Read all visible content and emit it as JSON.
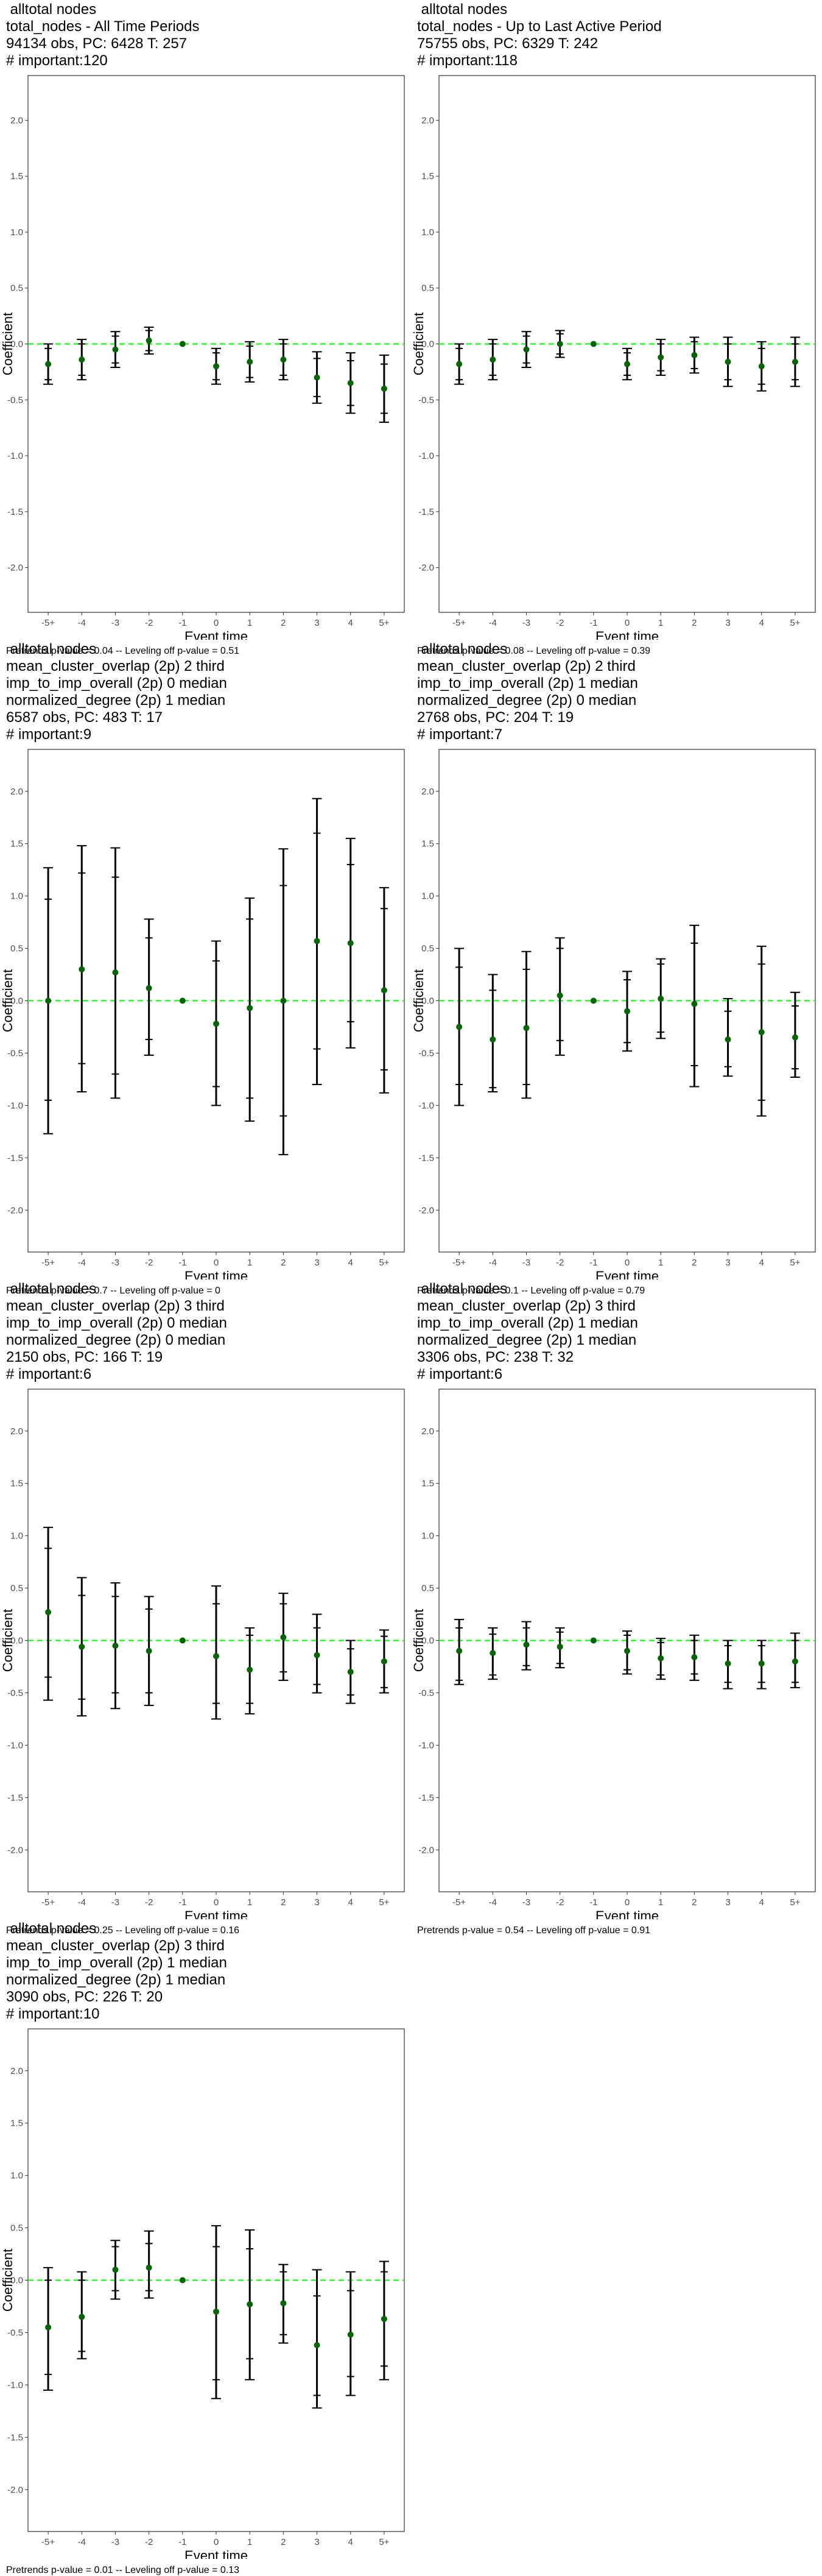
{
  "chart_data": [
    {
      "type": "scatter",
      "title_lines": [
        " alltotal nodes",
        "total_nodes - All Time Periods",
        "94134 obs, PC: 6428 T: 257",
        "# important:120"
      ],
      "xlabel": "Event time",
      "ylabel": "Coefficient",
      "categories": [
        "-5+",
        "-4",
        "-3",
        "-2",
        "-1",
        "0",
        "1",
        "2",
        "3",
        "4",
        "5+"
      ],
      "ylim": [
        -2.4,
        2.4
      ],
      "yticks": [
        -2.0,
        -1.5,
        -1.0,
        -0.5,
        0.0,
        0.5,
        1.0,
        1.5,
        2.0
      ],
      "coef": [
        -0.18,
        -0.14,
        -0.05,
        0.03,
        0.0,
        -0.2,
        -0.16,
        -0.14,
        -0.3,
        -0.35,
        -0.4
      ],
      "ci_inner": [
        [
          -0.32,
          -0.04
        ],
        [
          -0.28,
          0.0
        ],
        [
          -0.17,
          0.07
        ],
        [
          -0.06,
          0.12
        ],
        [
          0,
          0
        ],
        [
          -0.32,
          -0.08
        ],
        [
          -0.3,
          -0.02
        ],
        [
          -0.28,
          0.0
        ],
        [
          -0.47,
          -0.13
        ],
        [
          -0.55,
          -0.15
        ],
        [
          -0.62,
          -0.18
        ]
      ],
      "ci_outer": [
        [
          -0.36,
          0.0
        ],
        [
          -0.32,
          0.04
        ],
        [
          -0.21,
          0.11
        ],
        [
          -0.09,
          0.15
        ],
        [
          0,
          0
        ],
        [
          -0.36,
          -0.04
        ],
        [
          -0.34,
          0.02
        ],
        [
          -0.32,
          0.04
        ],
        [
          -0.53,
          -0.07
        ],
        [
          -0.62,
          -0.08
        ],
        [
          -0.7,
          -0.1
        ]
      ],
      "footer": "Pretrends p-value = 0.04 -- Leveling off p-value = 0.51",
      "colors": {
        "point": "#006400",
        "zero_line": "#00ff00",
        "bar": "#000000"
      }
    },
    {
      "type": "scatter",
      "title_lines": [
        " alltotal nodes",
        "total_nodes - Up to Last Active Period",
        "75755 obs, PC: 6329 T: 242",
        "# important:118"
      ],
      "xlabel": "Event time",
      "ylabel": "Coefficient",
      "categories": [
        "-5+",
        "-4",
        "-3",
        "-2",
        "-1",
        "0",
        "1",
        "2",
        "3",
        "4",
        "5+"
      ],
      "ylim": [
        -2.4,
        2.4
      ],
      "yticks": [
        -2.0,
        -1.5,
        -1.0,
        -0.5,
        0.0,
        0.5,
        1.0,
        1.5,
        2.0
      ],
      "coef": [
        -0.18,
        -0.14,
        -0.05,
        0.0,
        0.0,
        -0.18,
        -0.12,
        -0.1,
        -0.16,
        -0.2,
        -0.16
      ],
      "ci_inner": [
        [
          -0.32,
          -0.04
        ],
        [
          -0.28,
          0.0
        ],
        [
          -0.17,
          0.07
        ],
        [
          -0.09,
          0.09
        ],
        [
          0,
          0
        ],
        [
          -0.28,
          -0.08
        ],
        [
          -0.24,
          0.0
        ],
        [
          -0.22,
          0.02
        ],
        [
          -0.32,
          0.0
        ],
        [
          -0.36,
          -0.04
        ],
        [
          -0.32,
          0.0
        ]
      ],
      "ci_outer": [
        [
          -0.36,
          0.0
        ],
        [
          -0.32,
          0.04
        ],
        [
          -0.21,
          0.11
        ],
        [
          -0.12,
          0.12
        ],
        [
          0,
          0
        ],
        [
          -0.32,
          -0.04
        ],
        [
          -0.28,
          0.04
        ],
        [
          -0.26,
          0.06
        ],
        [
          -0.38,
          0.06
        ],
        [
          -0.42,
          0.02
        ],
        [
          -0.38,
          0.06
        ]
      ],
      "footer": "Pretrends p-value = 0.08 -- Leveling off p-value = 0.39",
      "colors": {
        "point": "#006400",
        "zero_line": "#00ff00",
        "bar": "#000000"
      }
    },
    {
      "type": "scatter",
      "title_lines": [
        " alltotal nodes",
        "mean_cluster_overlap (2p) 2 third",
        "imp_to_imp_overall (2p) 0 median",
        "normalized_degree (2p) 1 median",
        "6587 obs, PC: 483 T: 17",
        "# important:9"
      ],
      "xlabel": "Event time",
      "ylabel": "Coefficient",
      "categories": [
        "-5+",
        "-4",
        "-3",
        "-2",
        "-1",
        "0",
        "1",
        "2",
        "3",
        "4",
        "5+"
      ],
      "ylim": [
        -2.4,
        2.4
      ],
      "yticks": [
        -2.0,
        -1.5,
        -1.0,
        -0.5,
        0.0,
        0.5,
        1.0,
        1.5,
        2.0
      ],
      "coef": [
        0.0,
        0.3,
        0.27,
        0.12,
        0.0,
        -0.22,
        -0.07,
        0.0,
        0.57,
        0.55,
        0.1
      ],
      "ci_inner": [
        [
          -0.95,
          0.97
        ],
        [
          -0.6,
          1.22
        ],
        [
          -0.7,
          1.18
        ],
        [
          -0.37,
          0.6
        ],
        [
          0,
          0
        ],
        [
          -0.82,
          0.38
        ],
        [
          -0.93,
          0.78
        ],
        [
          -1.1,
          1.1
        ],
        [
          -0.46,
          1.6
        ],
        [
          -0.2,
          1.3
        ],
        [
          -0.66,
          0.88
        ]
      ],
      "ci_outer": [
        [
          -1.27,
          1.27
        ],
        [
          -0.87,
          1.48
        ],
        [
          -0.93,
          1.46
        ],
        [
          -0.52,
          0.78
        ],
        [
          0,
          0
        ],
        [
          -1.0,
          0.57
        ],
        [
          -1.15,
          0.98
        ],
        [
          -1.47,
          1.45
        ],
        [
          -0.8,
          1.93
        ],
        [
          -0.45,
          1.55
        ],
        [
          -0.88,
          1.08
        ]
      ],
      "footer": "Pretrends p-value = 0.7 -- Leveling off p-value = 0",
      "colors": {
        "point": "#006400",
        "zero_line": "#00ff00",
        "bar": "#000000"
      }
    },
    {
      "type": "scatter",
      "title_lines": [
        " alltotal nodes",
        "mean_cluster_overlap (2p) 2 third",
        "imp_to_imp_overall (2p) 1 median",
        "normalized_degree (2p) 0 median",
        "2768 obs, PC: 204 T: 19",
        "# important:7"
      ],
      "xlabel": "Event time",
      "ylabel": "Coefficient",
      "categories": [
        "-5+",
        "-4",
        "-3",
        "-2",
        "-1",
        "0",
        "1",
        "2",
        "3",
        "4",
        "5+"
      ],
      "ylim": [
        -2.4,
        2.4
      ],
      "yticks": [
        -2.0,
        -1.5,
        -1.0,
        -0.5,
        0.0,
        0.5,
        1.0,
        1.5,
        2.0
      ],
      "coef": [
        -0.25,
        -0.37,
        -0.26,
        0.05,
        0.0,
        -0.1,
        0.02,
        -0.03,
        -0.37,
        -0.3,
        -0.35
      ],
      "ci_inner": [
        [
          -0.8,
          0.32
        ],
        [
          -0.83,
          0.1
        ],
        [
          -0.8,
          0.3
        ],
        [
          -0.38,
          0.5
        ],
        [
          0,
          0
        ],
        [
          -0.4,
          0.2
        ],
        [
          -0.3,
          0.35
        ],
        [
          -0.62,
          0.55
        ],
        [
          -0.63,
          -0.1
        ],
        [
          -0.95,
          0.35
        ],
        [
          -0.65,
          -0.05
        ]
      ],
      "ci_outer": [
        [
          -1.0,
          0.5
        ],
        [
          -0.87,
          0.25
        ],
        [
          -0.93,
          0.47
        ],
        [
          -0.52,
          0.6
        ],
        [
          0,
          0
        ],
        [
          -0.48,
          0.28
        ],
        [
          -0.36,
          0.4
        ],
        [
          -0.82,
          0.72
        ],
        [
          -0.72,
          0.02
        ],
        [
          -1.1,
          0.52
        ],
        [
          -0.73,
          0.08
        ]
      ],
      "footer": "Pretrends p-value = 0.1 -- Leveling off p-value = 0.79",
      "colors": {
        "point": "#006400",
        "zero_line": "#00ff00",
        "bar": "#000000"
      }
    },
    {
      "type": "scatter",
      "title_lines": [
        " alltotal nodes",
        "mean_cluster_overlap (2p) 3 third",
        "imp_to_imp_overall (2p) 0 median",
        "normalized_degree (2p) 0 median",
        "2150 obs, PC: 166 T: 19",
        "# important:6"
      ],
      "xlabel": "Event time",
      "ylabel": "Coefficient",
      "categories": [
        "-5+",
        "-4",
        "-3",
        "-2",
        "-1",
        "0",
        "1",
        "2",
        "3",
        "4",
        "5+"
      ],
      "ylim": [
        -2.4,
        2.4
      ],
      "yticks": [
        -2.0,
        -1.5,
        -1.0,
        -0.5,
        0.0,
        0.5,
        1.0,
        1.5,
        2.0
      ],
      "coef": [
        0.27,
        -0.06,
        -0.05,
        -0.1,
        0.0,
        -0.15,
        -0.28,
        0.03,
        -0.14,
        -0.3,
        -0.2
      ],
      "ci_inner": [
        [
          -0.35,
          0.88
        ],
        [
          -0.56,
          0.43
        ],
        [
          -0.5,
          0.42
        ],
        [
          -0.5,
          0.3
        ],
        [
          0,
          0
        ],
        [
          -0.6,
          0.35
        ],
        [
          -0.6,
          0.05
        ],
        [
          -0.3,
          0.35
        ],
        [
          -0.42,
          0.12
        ],
        [
          -0.52,
          -0.08
        ],
        [
          -0.45,
          0.04
        ]
      ],
      "ci_outer": [
        [
          -0.57,
          1.08
        ],
        [
          -0.72,
          0.6
        ],
        [
          -0.65,
          0.55
        ],
        [
          -0.62,
          0.42
        ],
        [
          0,
          0
        ],
        [
          -0.75,
          0.52
        ],
        [
          -0.7,
          0.12
        ],
        [
          -0.38,
          0.45
        ],
        [
          -0.5,
          0.25
        ],
        [
          -0.6,
          0.0
        ],
        [
          -0.5,
          0.1
        ]
      ],
      "footer": "Pretrends p-value = 0.25 -- Leveling off p-value = 0.16",
      "colors": {
        "point": "#006400",
        "zero_line": "#00ff00",
        "bar": "#000000"
      }
    },
    {
      "type": "scatter",
      "title_lines": [
        " alltotal nodes",
        "mean_cluster_overlap (2p) 3 third",
        "imp_to_imp_overall (2p) 1 median",
        "normalized_degree (2p) 1 median",
        "3306 obs, PC: 238 T: 32",
        "# important:6"
      ],
      "xlabel": "Event time",
      "ylabel": "Coefficient",
      "categories": [
        "-5+",
        "-4",
        "-3",
        "-2",
        "-1",
        "0",
        "1",
        "2",
        "3",
        "4",
        "5+"
      ],
      "ylim": [
        -2.4,
        2.4
      ],
      "yticks": [
        -2.0,
        -1.5,
        -1.0,
        -0.5,
        0.0,
        0.5,
        1.0,
        1.5,
        2.0
      ],
      "coef": [
        -0.1,
        -0.12,
        -0.04,
        -0.06,
        0.0,
        -0.1,
        -0.17,
        -0.16,
        -0.22,
        -0.22,
        -0.2
      ],
      "ci_inner": [
        [
          -0.38,
          0.12
        ],
        [
          -0.33,
          0.06
        ],
        [
          -0.24,
          0.12
        ],
        [
          -0.22,
          0.08
        ],
        [
          0,
          0
        ],
        [
          -0.28,
          0.05
        ],
        [
          -0.33,
          -0.02
        ],
        [
          -0.32,
          0.0
        ],
        [
          -0.4,
          -0.05
        ],
        [
          -0.4,
          -0.05
        ],
        [
          -0.4,
          0.0
        ]
      ],
      "ci_outer": [
        [
          -0.42,
          0.2
        ],
        [
          -0.37,
          0.12
        ],
        [
          -0.28,
          0.18
        ],
        [
          -0.26,
          0.12
        ],
        [
          0,
          0
        ],
        [
          -0.32,
          0.09
        ],
        [
          -0.37,
          0.02
        ],
        [
          -0.38,
          0.05
        ],
        [
          -0.46,
          0.0
        ],
        [
          -0.46,
          0.0
        ],
        [
          -0.45,
          0.07
        ]
      ],
      "footer": "Pretrends p-value = 0.54 -- Leveling off p-value = 0.91",
      "colors": {
        "point": "#006400",
        "zero_line": "#00ff00",
        "bar": "#000000"
      }
    },
    {
      "type": "scatter",
      "title_lines": [
        " alltotal nodes",
        "mean_cluster_overlap (2p) 3 third",
        "imp_to_imp_overall (2p) 1 median",
        "normalized_degree (2p) 1 median",
        "3090 obs, PC: 226 T: 20",
        "# important:10"
      ],
      "xlabel": "Event time",
      "ylabel": "Coefficient",
      "categories": [
        "-5+",
        "-4",
        "-3",
        "-2",
        "-1",
        "0",
        "1",
        "2",
        "3",
        "4",
        "5+"
      ],
      "ylim": [
        -2.4,
        2.4
      ],
      "yticks": [
        -2.0,
        -1.5,
        -1.0,
        -0.5,
        0.0,
        0.5,
        1.0,
        1.5,
        2.0
      ],
      "coef": [
        -0.45,
        -0.35,
        0.1,
        0.12,
        0.0,
        -0.3,
        -0.23,
        -0.22,
        -0.62,
        -0.52,
        -0.37
      ],
      "ci_inner": [
        [
          -0.9,
          0.0
        ],
        [
          -0.68,
          0.0
        ],
        [
          -0.1,
          0.32
        ],
        [
          -0.1,
          0.35
        ],
        [
          0,
          0
        ],
        [
          -0.95,
          0.32
        ],
        [
          -0.75,
          0.3
        ],
        [
          -0.52,
          0.08
        ],
        [
          -1.1,
          -0.15
        ],
        [
          -0.92,
          -0.1
        ],
        [
          -0.82,
          0.08
        ]
      ],
      "ci_outer": [
        [
          -1.05,
          0.12
        ],
        [
          -0.75,
          0.08
        ],
        [
          -0.18,
          0.38
        ],
        [
          -0.17,
          0.47
        ],
        [
          0,
          0
        ],
        [
          -1.13,
          0.52
        ],
        [
          -0.95,
          0.48
        ],
        [
          -0.6,
          0.15
        ],
        [
          -1.22,
          0.1
        ],
        [
          -1.1,
          0.08
        ],
        [
          -0.95,
          0.18
        ]
      ],
      "footer": "Pretrends p-value = 0.01 -- Leveling off p-value = 0.13",
      "colors": {
        "point": "#006400",
        "zero_line": "#00ff00",
        "bar": "#000000"
      }
    }
  ]
}
